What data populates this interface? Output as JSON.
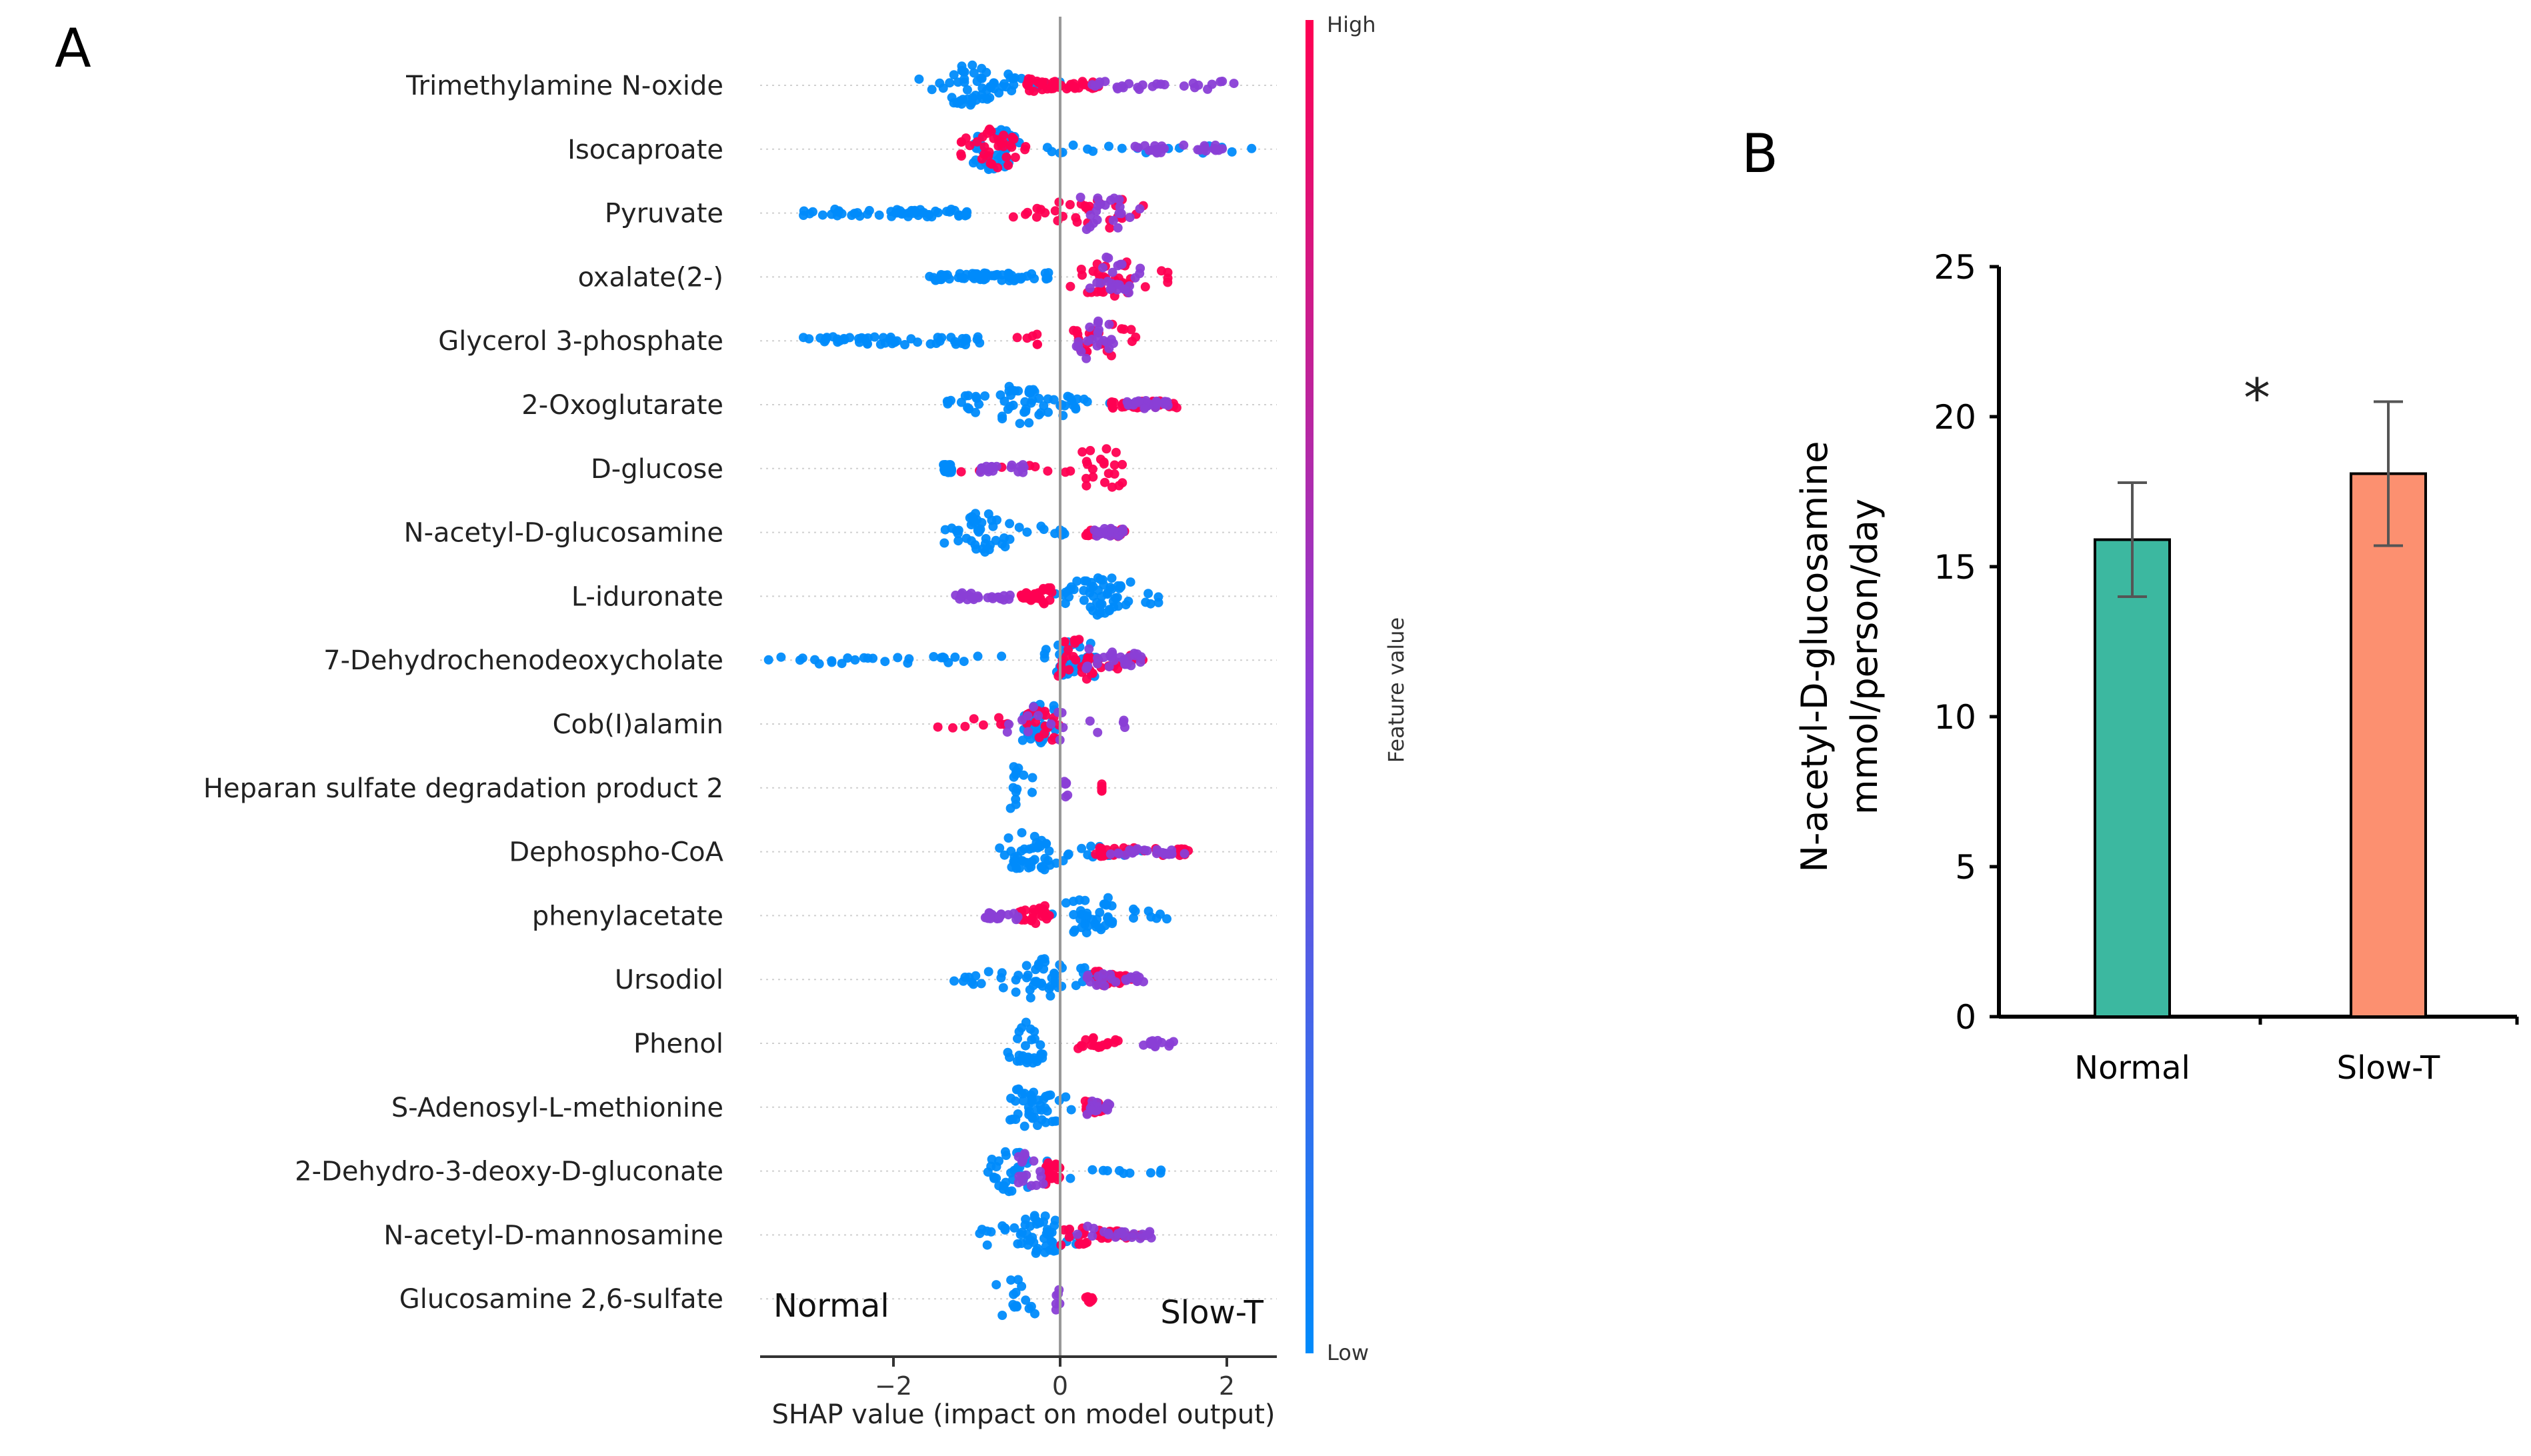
{
  "chart_data": [
    {
      "panel_label": "A",
      "type": "scatter",
      "subtype": "shap-beeswarm",
      "xlabel": "SHAP value (impact on model output)",
      "xlim": [
        -3.6,
        2.6
      ],
      "x_ticks": [
        -2,
        0,
        2
      ],
      "x_tick_labels": [
        "−2",
        "0",
        "2"
      ],
      "left_annotation": "Normal",
      "right_annotation": "Slow-T",
      "colorbar": {
        "label": "Feature value",
        "high_label": "High",
        "low_label": "Low",
        "high_color": "#ff0052",
        "mid_color": "#8a3fd6",
        "low_color": "#008bfb"
      },
      "features": [
        {
          "name": "Trimethylamine N-oxide",
          "low_range": [
            -1.7,
            0.0
          ],
          "high_range": [
            -0.4,
            0.5
          ],
          "mix_range": [
            0.3,
            2.1
          ],
          "n_points": 130,
          "dense_center": -1.1
        },
        {
          "name": "Isocaproate",
          "low_range": [
            -0.8,
            2.3
          ],
          "high_range": [
            -1.2,
            -0.4
          ],
          "mix_range": [
            0.8,
            2.0
          ],
          "n_points": 120,
          "dense_center": -0.8
        },
        {
          "name": "Pyruvate",
          "low_range": [
            -3.1,
            -1.1
          ],
          "high_range": [
            -0.7,
            1.2
          ],
          "mix_range": [
            0.1,
            1.0
          ],
          "n_points": 105,
          "dense_center": 0.5
        },
        {
          "name": "oxalate(2-)",
          "low_range": [
            -1.6,
            -0.1
          ],
          "high_range": [
            0.1,
            1.3
          ],
          "mix_range": [
            0.3,
            1.0
          ],
          "n_points": 120,
          "dense_center": 0.6
        },
        {
          "name": "Glycerol 3-phosphate",
          "low_range": [
            -3.1,
            -0.9
          ],
          "high_range": [
            -0.7,
            1.0
          ],
          "mix_range": [
            0.2,
            0.8
          ],
          "n_points": 100,
          "dense_center": 0.4
        },
        {
          "name": "2-Oxoglutarate",
          "low_range": [
            -1.4,
            0.6
          ],
          "high_range": [
            0.6,
            1.4
          ],
          "mix_range": [
            0.8,
            1.3
          ],
          "n_points": 125,
          "dense_center": -0.5
        },
        {
          "name": "D-glucose",
          "low_range": [
            -1.4,
            -1.3
          ],
          "high_range": [
            -1.2,
            0.8
          ],
          "mix_range": [
            -1.0,
            -0.4
          ],
          "n_points": 95,
          "dense_center": 0.5
        },
        {
          "name": "N-acetyl-D-glucosamine",
          "low_range": [
            -1.4,
            0.1
          ],
          "high_range": [
            0.3,
            0.8
          ],
          "mix_range": [
            0.4,
            0.9
          ],
          "n_points": 95,
          "dense_center": -0.9
        },
        {
          "name": "L-iduronate",
          "low_range": [
            -0.1,
            1.2
          ],
          "high_range": [
            -0.5,
            -0.1
          ],
          "mix_range": [
            -1.3,
            -0.6
          ],
          "n_points": 115,
          "dense_center": 0.5
        },
        {
          "name": "7-Dehydrochenodeoxycholate",
          "low_range": [
            -3.5,
            0.4
          ],
          "high_range": [
            0.2,
            1.1
          ],
          "mix_range": [
            0.3,
            1.0
          ],
          "n_points": 125,
          "dense_center": 0.2
        },
        {
          "name": "Cob(I)alamin",
          "low_range": [
            -0.4,
            -0.2
          ],
          "high_range": [
            -1.6,
            1.0
          ],
          "mix_range": [
            -0.8,
            0.8
          ],
          "n_points": 85,
          "dense_center": -0.2
        },
        {
          "name": "Heparan sulfate degradation product 2",
          "low_range": [
            -0.6,
            -0.5
          ],
          "high_range": [
            0.5,
            0.5
          ],
          "mix_range": [
            0.05,
            0.1
          ],
          "n_points": 28,
          "dense_center": -0.55
        },
        {
          "name": "Dephospho-CoA",
          "low_range": [
            -0.8,
            1.0
          ],
          "high_range": [
            0.4,
            1.6
          ],
          "mix_range": [
            0.6,
            1.5
          ],
          "n_points": 110,
          "dense_center": -0.35
        },
        {
          "name": "phenylacetate",
          "low_range": [
            -0.1,
            1.3
          ],
          "high_range": [
            -0.5,
            -0.1
          ],
          "mix_range": [
            -0.9,
            -0.5
          ],
          "n_points": 90,
          "dense_center": 0.4
        },
        {
          "name": "Ursodiol",
          "low_range": [
            -1.3,
            0.5
          ],
          "high_range": [
            0.4,
            0.9
          ],
          "mix_range": [
            0.3,
            1.0
          ],
          "n_points": 105,
          "dense_center": -0.2
        },
        {
          "name": "Phenol",
          "low_range": [
            -0.6,
            -0.2
          ],
          "high_range": [
            0.2,
            0.7
          ],
          "mix_range": [
            1.0,
            1.4
          ],
          "n_points": 60,
          "dense_center": -0.4
        },
        {
          "name": "S-Adenosyl-L-methionine",
          "low_range": [
            -0.6,
            0.2
          ],
          "high_range": [
            0.3,
            0.6
          ],
          "mix_range": [
            0.3,
            0.6
          ],
          "n_points": 85,
          "dense_center": -0.4
        },
        {
          "name": "2-Dehydro-3-deoxy-D-gluconate",
          "low_range": [
            -1.0,
            1.5
          ],
          "high_range": [
            -0.2,
            0.0
          ],
          "mix_range": [
            -0.5,
            -0.2
          ],
          "n_points": 80,
          "dense_center": -0.6
        },
        {
          "name": "N-acetyl-D-mannosamine",
          "low_range": [
            -1.0,
            0.2
          ],
          "high_range": [
            0.0,
            1.2
          ],
          "mix_range": [
            0.2,
            1.1
          ],
          "n_points": 110,
          "dense_center": -0.3
        },
        {
          "name": "Glucosamine 2,6-sulfate",
          "low_range": [
            -0.6,
            -0.5
          ],
          "high_range": [
            0.3,
            0.4
          ],
          "mix_range": [
            -0.05,
            0.0
          ],
          "n_points": 30,
          "dense_center": -0.55
        }
      ]
    },
    {
      "panel_label": "B",
      "type": "bar",
      "categories": [
        "Normal",
        "Slow-T"
      ],
      "values": [
        15.9,
        18.1
      ],
      "errors": [
        1.9,
        2.4
      ],
      "colors": [
        "#3cb8a0",
        "#fc9070"
      ],
      "ylabel_line1": "N-acetyl-D-glucosamine",
      "ylabel_line2": "mmol/person/day",
      "ylim": [
        0,
        25
      ],
      "y_ticks": [
        0,
        5,
        10,
        15,
        20,
        25
      ],
      "significance": "*"
    }
  ]
}
